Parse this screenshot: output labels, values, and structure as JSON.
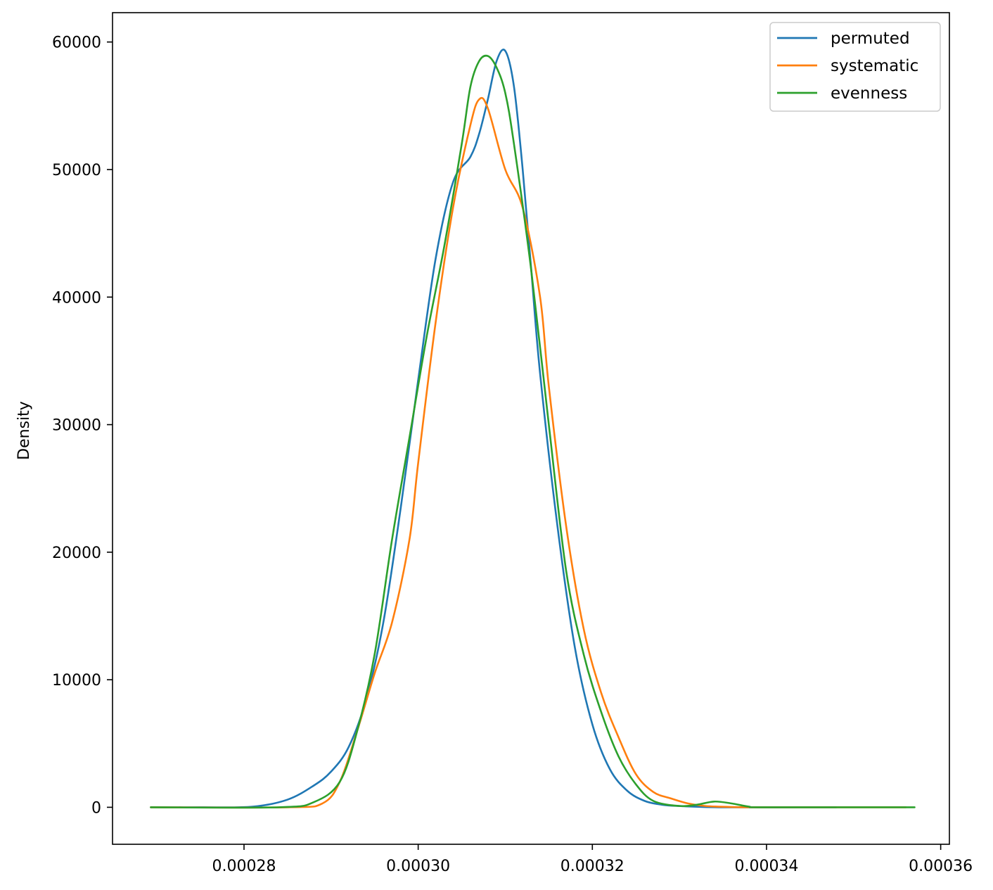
{
  "chart_data": {
    "type": "line",
    "title": "",
    "xlabel": "",
    "ylabel": "Density",
    "xlim": [
      0.0002649,
      0.000361
    ],
    "ylim": [
      -2900,
      62300
    ],
    "x_ticks": [
      0.00028,
      0.0003,
      0.00032,
      0.00034,
      0.00036
    ],
    "x_tick_labels": [
      "0.00028",
      "0.00030",
      "0.00032",
      "0.00034",
      "0.00036"
    ],
    "y_ticks": [
      0,
      10000,
      20000,
      30000,
      40000,
      50000,
      60000
    ],
    "y_tick_labels": [
      "0",
      "10000",
      "20000",
      "30000",
      "40000",
      "50000",
      "60000"
    ],
    "grid": false,
    "legend": "top-right",
    "series": [
      {
        "name": "permuted",
        "color": "#1f77b4",
        "points": [
          [
            0.0002693,
            0
          ],
          [
            0.000275,
            0
          ],
          [
            0.000281,
            50
          ],
          [
            0.000285,
            600
          ],
          [
            0.000288,
            1700
          ],
          [
            0.00029,
            2800
          ],
          [
            0.000292,
            4700
          ],
          [
            0.000294,
            8400
          ],
          [
            0.000296,
            14500
          ],
          [
            0.000298,
            23500
          ],
          [
            0.0003,
            33500
          ],
          [
            0.000302,
            43000
          ],
          [
            0.000304,
            49000
          ],
          [
            0.000306,
            51000
          ],
          [
            0.000307,
            52800
          ],
          [
            0.000308,
            55500
          ],
          [
            0.000309,
            58500
          ],
          [
            0.00031,
            59300
          ],
          [
            0.000311,
            56500
          ],
          [
            0.000312,
            50000
          ],
          [
            0.000313,
            42000
          ],
          [
            0.000314,
            34000
          ],
          [
            0.000316,
            22000
          ],
          [
            0.000318,
            12500
          ],
          [
            0.00032,
            6500
          ],
          [
            0.000322,
            3000
          ],
          [
            0.000324,
            1300
          ],
          [
            0.000326,
            500
          ],
          [
            0.000328,
            200
          ],
          [
            0.00033,
            100
          ],
          [
            0.000335,
            0
          ],
          [
            0.000348,
            0
          ]
        ]
      },
      {
        "name": "systematic",
        "color": "#ff7f0e",
        "points": [
          [
            0.0002693,
            0
          ],
          [
            0.000285,
            0
          ],
          [
            0.000289,
            300
          ],
          [
            0.000291,
            2000
          ],
          [
            0.000293,
            6000
          ],
          [
            0.000295,
            10500
          ],
          [
            0.000297,
            14500
          ],
          [
            0.000299,
            21000
          ],
          [
            0.0003,
            27000
          ],
          [
            0.000302,
            38000
          ],
          [
            0.000304,
            47000
          ],
          [
            0.000306,
            53500
          ],
          [
            0.000307,
            55500
          ],
          [
            0.000308,
            54800
          ],
          [
            0.00031,
            50000
          ],
          [
            0.000312,
            47000
          ],
          [
            0.000314,
            40000
          ],
          [
            0.000315,
            33000
          ],
          [
            0.000317,
            22000
          ],
          [
            0.000319,
            14000
          ],
          [
            0.000321,
            9000
          ],
          [
            0.000323,
            5500
          ],
          [
            0.000325,
            2600
          ],
          [
            0.000327,
            1200
          ],
          [
            0.000329,
            700
          ],
          [
            0.000331,
            300
          ],
          [
            0.000333,
            100
          ],
          [
            0.000336,
            20
          ],
          [
            0.00034,
            0
          ],
          [
            0.000356,
            0
          ]
        ]
      },
      {
        "name": "evenness",
        "color": "#2ca02c",
        "points": [
          [
            0.0002693,
            0
          ],
          [
            0.000284,
            0
          ],
          [
            0.000288,
            400
          ],
          [
            0.000291,
            2000
          ],
          [
            0.000293,
            6000
          ],
          [
            0.000295,
            12000
          ],
          [
            0.000297,
            21000
          ],
          [
            0.000299,
            29000
          ],
          [
            0.000301,
            37000
          ],
          [
            0.000303,
            44000
          ],
          [
            0.000305,
            52000
          ],
          [
            0.000306,
            56500
          ],
          [
            0.000307,
            58500
          ],
          [
            0.000308,
            58900
          ],
          [
            0.000309,
            58000
          ],
          [
            0.00031,
            56000
          ],
          [
            0.000311,
            52000
          ],
          [
            0.000313,
            42000
          ],
          [
            0.000315,
            30000
          ],
          [
            0.000317,
            18500
          ],
          [
            0.000319,
            12000
          ],
          [
            0.000321,
            7500
          ],
          [
            0.000323,
            4000
          ],
          [
            0.000325,
            1800
          ],
          [
            0.000327,
            500
          ],
          [
            0.00033,
            100
          ],
          [
            0.000332,
            200
          ],
          [
            0.000334,
            450
          ],
          [
            0.000336,
            300
          ],
          [
            0.000338,
            50
          ],
          [
            0.00034,
            0
          ],
          [
            0.000357,
            0
          ]
        ]
      }
    ]
  }
}
